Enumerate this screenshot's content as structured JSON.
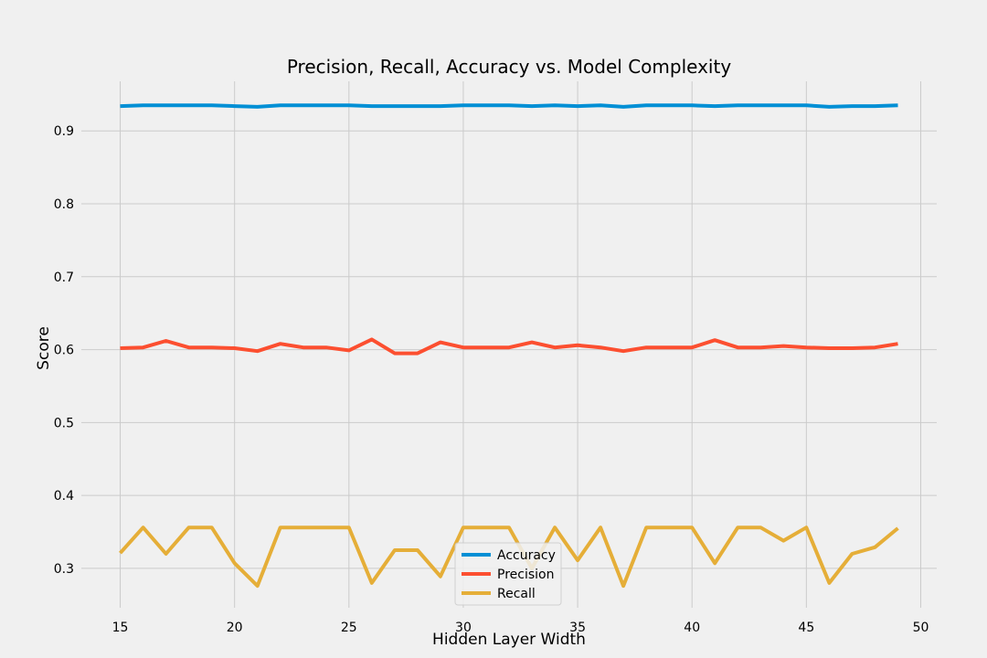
{
  "chart_data": {
    "type": "line",
    "title": "Precision, Recall, Accuracy vs. Model Complexity",
    "xlabel": "Hidden Layer Width",
    "ylabel": "Score",
    "xlim": [
      13.3,
      50.7
    ],
    "ylim": [
      0.246,
      0.968
    ],
    "xticks": [
      15,
      20,
      25,
      30,
      35,
      40,
      45,
      50
    ],
    "yticks": [
      0.3,
      0.4,
      0.5,
      0.6,
      0.7,
      0.8,
      0.9
    ],
    "grid": true,
    "legend_position": "bottom-center",
    "x": [
      15,
      16,
      17,
      18,
      19,
      20,
      21,
      22,
      23,
      24,
      25,
      26,
      27,
      28,
      29,
      30,
      31,
      32,
      33,
      34,
      35,
      36,
      37,
      38,
      39,
      40,
      41,
      42,
      43,
      44,
      45,
      46,
      47,
      48,
      49
    ],
    "series": [
      {
        "name": "Accuracy",
        "color": "#008fd5",
        "values": [
          0.934,
          0.935,
          0.935,
          0.935,
          0.935,
          0.934,
          0.933,
          0.935,
          0.935,
          0.935,
          0.935,
          0.934,
          0.934,
          0.934,
          0.934,
          0.935,
          0.935,
          0.935,
          0.934,
          0.935,
          0.934,
          0.935,
          0.933,
          0.935,
          0.935,
          0.935,
          0.934,
          0.935,
          0.935,
          0.935,
          0.935,
          0.933,
          0.934,
          0.934,
          0.935
        ]
      },
      {
        "name": "Precision",
        "color": "#fc4f30",
        "values": [
          0.602,
          0.603,
          0.612,
          0.603,
          0.603,
          0.602,
          0.598,
          0.608,
          0.603,
          0.603,
          0.599,
          0.614,
          0.595,
          0.595,
          0.61,
          0.603,
          0.603,
          0.603,
          0.61,
          0.603,
          0.606,
          0.603,
          0.598,
          0.603,
          0.603,
          0.603,
          0.613,
          0.603,
          0.603,
          0.605,
          0.603,
          0.602,
          0.602,
          0.603,
          0.608
        ]
      },
      {
        "name": "Recall",
        "color": "#e5ae38",
        "values": [
          0.321,
          0.356,
          0.32,
          0.356,
          0.356,
          0.307,
          0.276,
          0.356,
          0.356,
          0.356,
          0.356,
          0.28,
          0.325,
          0.325,
          0.289,
          0.356,
          0.356,
          0.356,
          0.3,
          0.356,
          0.311,
          0.356,
          0.276,
          0.356,
          0.356,
          0.356,
          0.307,
          0.356,
          0.356,
          0.338,
          0.356,
          0.28,
          0.32,
          0.329,
          0.355
        ]
      }
    ]
  }
}
